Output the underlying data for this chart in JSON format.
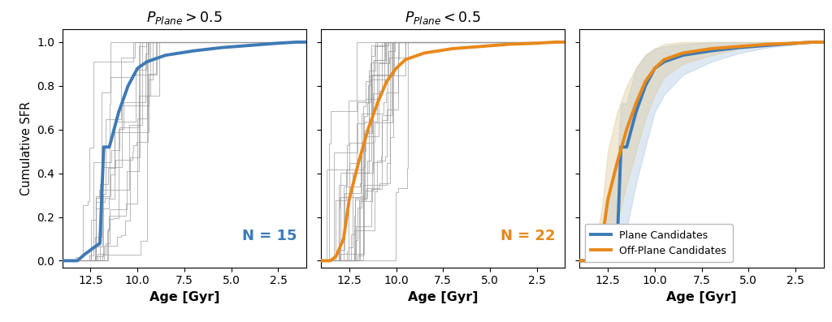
{
  "title1": "$P_{Plane} > 0.5$",
  "title2": "$P_{Plane} < 0.5$",
  "xlabel": "Age [Gyr]",
  "ylabel": "Cumulative SFR",
  "xlim": [
    14.0,
    1.0
  ],
  "ylim": [
    -0.03,
    1.06
  ],
  "blue_color": "#3d7ab5",
  "orange_color": "#e8881a",
  "gray_color": "#999999",
  "blue_fill_color": "#a8c4de",
  "orange_fill_color": "#ddc898",
  "n_blue": 15,
  "n_orange": 22,
  "xticks": [
    12.5,
    10.0,
    7.5,
    5.0,
    2.5
  ],
  "legend_labels": [
    "Plane Candidates",
    "Off-Plane Candidates"
  ],
  "blue_median_ages": [
    14.0,
    13.5,
    13.2,
    12.8,
    12.0,
    11.8,
    11.5,
    11.0,
    10.5,
    10.0,
    9.5,
    8.5,
    7.0,
    5.5,
    4.0,
    2.5,
    1.5,
    1.0
  ],
  "blue_median_vals": [
    0.0,
    0.0,
    0.0,
    0.03,
    0.08,
    0.52,
    0.52,
    0.68,
    0.8,
    0.88,
    0.91,
    0.94,
    0.96,
    0.975,
    0.985,
    0.995,
    1.0,
    1.0
  ],
  "orange_median_ages": [
    14.0,
    13.5,
    13.2,
    12.8,
    12.5,
    12.0,
    11.5,
    11.0,
    10.5,
    10.0,
    9.5,
    8.5,
    7.0,
    5.5,
    4.0,
    2.5,
    1.5,
    1.0
  ],
  "orange_median_vals": [
    0.0,
    0.0,
    0.02,
    0.1,
    0.28,
    0.45,
    0.6,
    0.72,
    0.82,
    0.88,
    0.92,
    0.95,
    0.97,
    0.98,
    0.99,
    0.995,
    1.0,
    1.0
  ],
  "blue_p25_vals": [
    0.0,
    0.0,
    0.0,
    0.0,
    0.0,
    0.15,
    0.15,
    0.35,
    0.52,
    0.68,
    0.76,
    0.85,
    0.91,
    0.95,
    0.975,
    0.99,
    1.0,
    1.0
  ],
  "blue_p75_vals": [
    0.0,
    0.0,
    0.02,
    0.15,
    0.45,
    0.72,
    0.72,
    0.88,
    0.94,
    0.97,
    0.98,
    0.99,
    1.0,
    1.0,
    1.0,
    1.0,
    1.0,
    1.0
  ],
  "orange_p25_vals": [
    0.0,
    0.0,
    0.0,
    0.0,
    0.05,
    0.18,
    0.35,
    0.5,
    0.65,
    0.76,
    0.84,
    0.9,
    0.94,
    0.97,
    0.985,
    0.99,
    1.0,
    1.0
  ],
  "orange_p75_vals": [
    0.0,
    0.0,
    0.05,
    0.25,
    0.5,
    0.68,
    0.8,
    0.88,
    0.94,
    0.97,
    0.99,
    1.0,
    1.0,
    1.0,
    1.0,
    1.0,
    1.0,
    1.0
  ]
}
